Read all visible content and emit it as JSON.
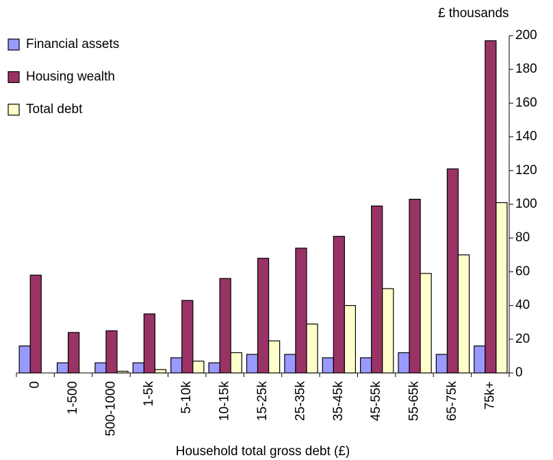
{
  "chart_data": {
    "type": "bar",
    "y_axis_label": "£ thousands",
    "x_axis_label": "Household total gross debt (£)",
    "categories": [
      "0",
      "1-500",
      "500-1000",
      "1-5k",
      "5-10k",
      "10-15k",
      "15-25k",
      "25-35k",
      "35-45k",
      "45-55k",
      "55-65k",
      "65-75k",
      "75k+"
    ],
    "series": [
      {
        "name": "Financial assets",
        "color": "#9999ff",
        "values": [
          16,
          6,
          6,
          6,
          9,
          6,
          11,
          11,
          9,
          9,
          12,
          11,
          16
        ]
      },
      {
        "name": "Housing wealth",
        "color": "#993366",
        "values": [
          58,
          24,
          25,
          35,
          43,
          56,
          68,
          74,
          81,
          99,
          103,
          121,
          197
        ]
      },
      {
        "name": "Total debt",
        "color": "#ffffcc",
        "values": [
          0,
          0,
          1,
          2,
          7,
          12,
          19,
          29,
          40,
          50,
          59,
          70,
          101
        ]
      }
    ],
    "ylim": [
      0,
      200
    ],
    "yticks": [
      0,
      20,
      40,
      60,
      80,
      100,
      120,
      140,
      160,
      180,
      200
    ],
    "grid": false,
    "legend": "top-left"
  }
}
